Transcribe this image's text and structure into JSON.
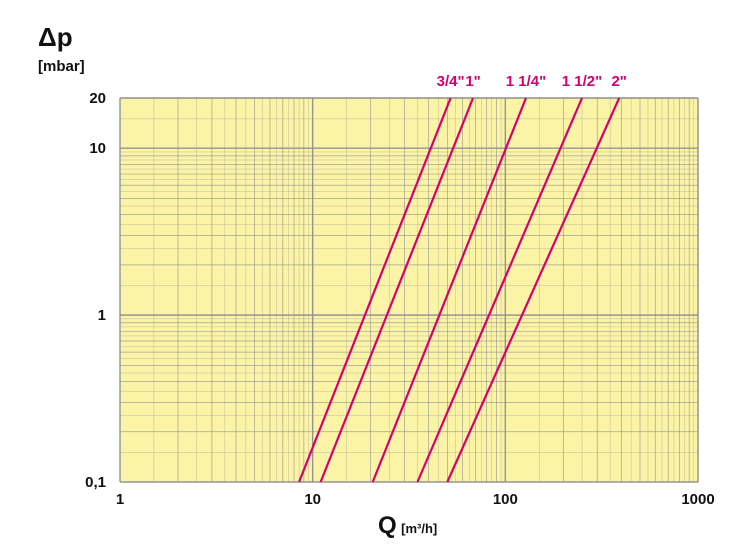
{
  "chart_data": {
    "type": "line",
    "title": "",
    "ylabel": "Δp",
    "ylabel_unit": "[mbar]",
    "xlabel": "Q",
    "xlabel_unit": "[m³/h]",
    "x_scale": "log",
    "y_scale": "log",
    "xlim": [
      1,
      1000
    ],
    "ylim": [
      0.1,
      20
    ],
    "grid": true,
    "colors": {
      "plot_background": "#fbf3a6",
      "grid": "#8f8f8f",
      "series": "#d6006e"
    },
    "x_tick_labels": [
      {
        "value": 1,
        "label": "1"
      },
      {
        "value": 10,
        "label": "10"
      },
      {
        "value": 100,
        "label": "100"
      },
      {
        "value": 1000,
        "label": "1000"
      }
    ],
    "y_tick_labels": [
      {
        "value": 0.1,
        "label": "0,1"
      },
      {
        "value": 1,
        "label": "1"
      },
      {
        "value": 10,
        "label": "10"
      },
      {
        "value": 20,
        "label": "20"
      }
    ],
    "series": [
      {
        "name": "3/4\"",
        "x": [
          8.5,
          52
        ],
        "y": [
          0.1,
          20
        ]
      },
      {
        "name": "1\"",
        "x": [
          11,
          68
        ],
        "y": [
          0.1,
          20
        ]
      },
      {
        "name": "1 1/4\"",
        "x": [
          20.5,
          128
        ],
        "y": [
          0.1,
          20
        ]
      },
      {
        "name": "1 1/2\"",
        "x": [
          35,
          250
        ],
        "y": [
          0.1,
          20
        ]
      },
      {
        "name": "2\"",
        "x": [
          50,
          390
        ],
        "y": [
          0.1,
          20
        ]
      }
    ]
  }
}
